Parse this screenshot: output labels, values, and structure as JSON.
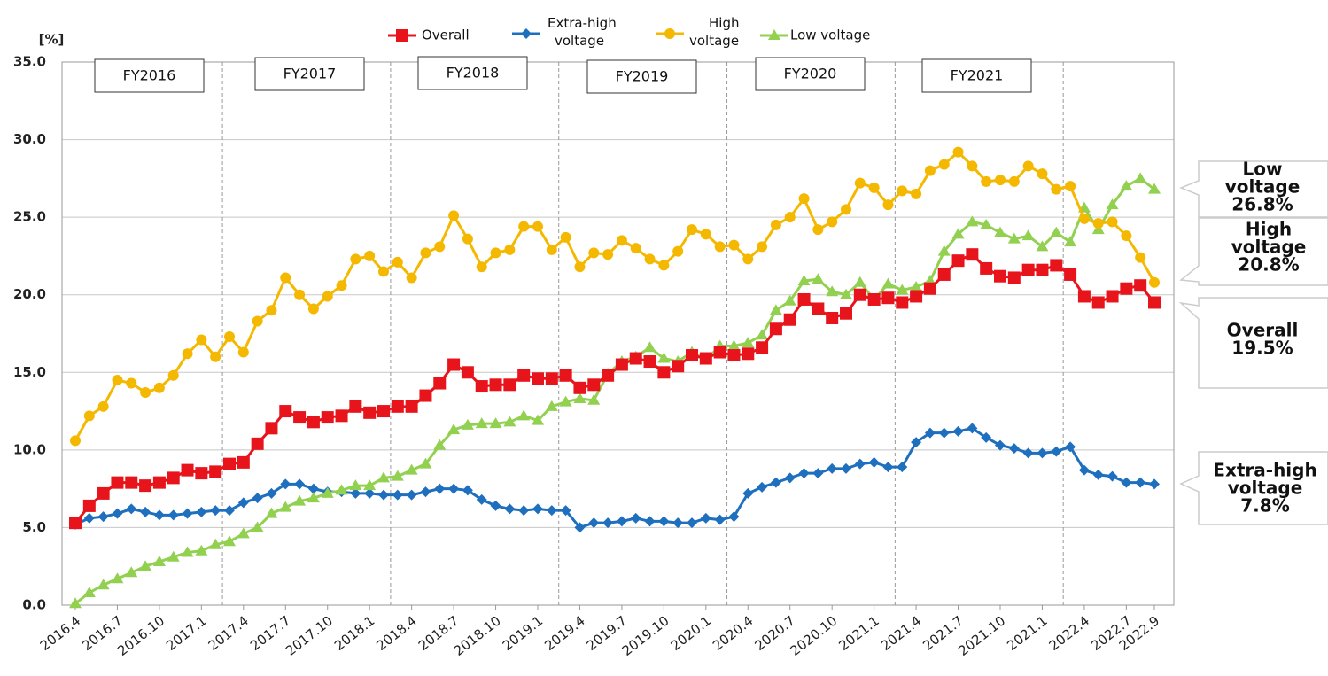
{
  "chart_data": {
    "type": "line",
    "y_unit": "[%]",
    "ylim": [
      0,
      35
    ],
    "yticks": [
      {
        "value": 0,
        "label": "0.0"
      },
      {
        "value": 5,
        "label": "5.0"
      },
      {
        "value": 10,
        "label": "10.0"
      },
      {
        "value": 15,
        "label": "15.0"
      },
      {
        "value": 20,
        "label": "20.0"
      },
      {
        "value": 25,
        "label": "25.0"
      },
      {
        "value": 30,
        "label": "30.0"
      },
      {
        "value": 35,
        "label": "35.0"
      }
    ],
    "grid": true,
    "categories": [
      "2016.4",
      null,
      null,
      "2016.7",
      null,
      null,
      "2016.10",
      null,
      null,
      "2017.1",
      null,
      null,
      "2017.4",
      null,
      null,
      "2017.7",
      null,
      null,
      "2017.10",
      null,
      null,
      "2018.1",
      null,
      null,
      "2018.4",
      null,
      null,
      "2018.7",
      null,
      null,
      "2018.10",
      null,
      null,
      "2019.1",
      null,
      null,
      "2019.4",
      null,
      null,
      "2019.7",
      null,
      null,
      "2019.10",
      null,
      null,
      "2020.1",
      null,
      null,
      "2020.4",
      null,
      null,
      "2020.7",
      null,
      null,
      "2020.10",
      null,
      null,
      "2021.1",
      null,
      null,
      "2021.4",
      null,
      null,
      "2021.7",
      null,
      null,
      "2021.10",
      null,
      null,
      "2021.1",
      null,
      null,
      "2022.4",
      null,
      null,
      "2022.7",
      null,
      "2022.9"
    ],
    "series": [
      {
        "name": "Overall",
        "color": "#e8141b",
        "marker": "square",
        "values": [
          5.3,
          6.4,
          7.2,
          7.9,
          7.9,
          7.7,
          7.9,
          8.2,
          8.7,
          8.5,
          8.6,
          9.1,
          9.2,
          10.4,
          11.4,
          12.5,
          12.1,
          11.8,
          12.1,
          12.2,
          12.8,
          12.4,
          12.5,
          12.8,
          12.8,
          13.5,
          14.3,
          15.5,
          15.0,
          14.1,
          14.2,
          14.2,
          14.8,
          14.6,
          14.6,
          14.8,
          14.0,
          14.2,
          14.8,
          15.5,
          15.9,
          15.7,
          15.0,
          15.4,
          16.1,
          15.9,
          16.3,
          16.1,
          16.2,
          16.6,
          17.8,
          18.4,
          19.7,
          19.1,
          18.5,
          18.8,
          20.0,
          19.7,
          19.8,
          19.5,
          19.9,
          20.4,
          21.3,
          22.2,
          22.6,
          21.7,
          21.2,
          21.1,
          21.6,
          21.6,
          21.9,
          21.3,
          19.9,
          19.5,
          19.9,
          20.4,
          20.6,
          19.5
        ]
      },
      {
        "name": "Extra-high voltage",
        "color": "#1f6fbf",
        "marker": "diamond",
        "values": [
          5.2,
          5.6,
          5.7,
          5.9,
          6.2,
          6.0,
          5.8,
          5.8,
          5.9,
          6.0,
          6.1,
          6.1,
          6.6,
          6.9,
          7.2,
          7.8,
          7.8,
          7.5,
          7.3,
          7.3,
          7.2,
          7.2,
          7.1,
          7.1,
          7.1,
          7.3,
          7.5,
          7.5,
          7.4,
          6.8,
          6.4,
          6.2,
          6.1,
          6.2,
          6.1,
          6.1,
          5.0,
          5.3,
          5.3,
          5.4,
          5.6,
          5.4,
          5.4,
          5.3,
          5.3,
          5.6,
          5.5,
          5.7,
          7.2,
          7.6,
          7.9,
          8.2,
          8.5,
          8.5,
          8.8,
          8.8,
          9.1,
          9.2,
          8.9,
          8.9,
          10.5,
          11.1,
          11.1,
          11.2,
          11.4,
          10.8,
          10.3,
          10.1,
          9.8,
          9.8,
          9.9,
          10.2,
          8.7,
          8.4,
          8.3,
          7.9,
          7.9,
          7.8
        ]
      },
      {
        "name": "High voltage",
        "color": "#f5b800",
        "marker": "circle",
        "values": [
          10.6,
          12.2,
          12.8,
          14.5,
          14.3,
          13.7,
          14.0,
          14.8,
          16.2,
          17.1,
          16.0,
          17.3,
          16.3,
          18.3,
          19.0,
          21.1,
          20.0,
          19.1,
          19.9,
          20.6,
          22.3,
          22.5,
          21.5,
          22.1,
          21.1,
          22.7,
          23.1,
          25.1,
          23.6,
          21.8,
          22.7,
          22.9,
          24.4,
          24.4,
          22.9,
          23.7,
          21.8,
          22.7,
          22.6,
          23.5,
          23.0,
          22.3,
          21.9,
          22.8,
          24.2,
          23.9,
          23.1,
          23.2,
          22.3,
          23.1,
          24.5,
          25.0,
          26.2,
          24.2,
          24.7,
          25.5,
          27.2,
          26.9,
          25.8,
          26.7,
          26.5,
          28.0,
          28.4,
          29.2,
          28.3,
          27.3,
          27.4,
          27.3,
          28.3,
          27.8,
          26.8,
          27.0,
          24.9,
          24.6,
          24.7,
          23.8,
          22.4,
          20.8
        ]
      },
      {
        "name": "Low voltage",
        "color": "#92d050",
        "marker": "triangle",
        "values": [
          0.1,
          0.8,
          1.3,
          1.7,
          2.1,
          2.5,
          2.8,
          3.1,
          3.4,
          3.5,
          3.9,
          4.1,
          4.6,
          5.0,
          5.9,
          6.3,
          6.7,
          6.9,
          7.2,
          7.4,
          7.7,
          7.7,
          8.2,
          8.3,
          8.7,
          9.1,
          10.3,
          11.3,
          11.6,
          11.7,
          11.7,
          11.8,
          12.2,
          11.9,
          12.8,
          13.1,
          13.3,
          13.2,
          14.9,
          15.7,
          16.0,
          16.6,
          15.9,
          15.7,
          16.3,
          15.8,
          16.7,
          16.7,
          16.9,
          17.4,
          19.0,
          19.6,
          20.9,
          21.0,
          20.2,
          20.0,
          20.8,
          19.7,
          20.7,
          20.3,
          20.5,
          20.9,
          22.8,
          23.9,
          24.7,
          24.5,
          24.0,
          23.6,
          23.8,
          23.1,
          24.0,
          23.4,
          25.6,
          24.2,
          25.8,
          27.0,
          27.5,
          26.8
        ]
      }
    ],
    "period_labels": [
      "FY2016",
      "FY2017",
      "FY2018",
      "FY2019",
      "FY2020",
      "FY2021"
    ],
    "annotations": [
      {
        "lines": [
          "Low",
          "voltage",
          "26.8%"
        ]
      },
      {
        "lines": [
          "High",
          "voltage",
          "20.8%"
        ]
      },
      {
        "lines": [
          "Overall",
          "19.5%"
        ]
      },
      {
        "lines": [
          "Extra-high",
          "voltage",
          "7.8%"
        ]
      }
    ]
  }
}
